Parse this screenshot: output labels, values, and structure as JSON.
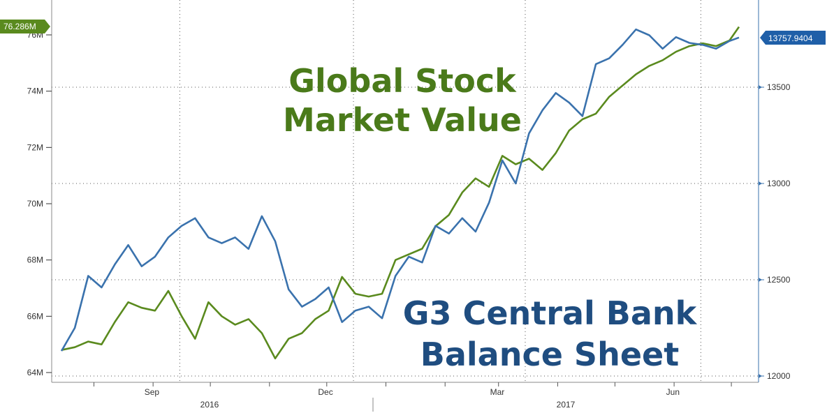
{
  "chart_data": {
    "type": "line",
    "x_axis": {
      "tick_labels": [
        "Sep",
        "Dec",
        "Mar",
        "Jun"
      ],
      "year_labels": [
        "2016",
        "2017"
      ],
      "range": [
        "2016-07-15",
        "2017-07-05"
      ]
    },
    "left_axis": {
      "tick_labels": [
        "64M",
        "66M",
        "68M",
        "70M",
        "72M",
        "74M",
        "76M"
      ],
      "ticks": [
        64,
        66,
        68,
        70,
        72,
        74,
        76
      ],
      "range": [
        63.3,
        77.2
      ]
    },
    "right_axis": {
      "tick_labels": [
        "12000",
        "12500",
        "13000",
        "13500"
      ],
      "ticks": [
        12000,
        12500,
        13000,
        13500
      ],
      "range": [
        12000,
        13900
      ]
    },
    "grid": true,
    "series": [
      {
        "name": "Global Stock Market Value",
        "axis": "left",
        "color": "#5a8a1e",
        "last_value_label": "76.286M",
        "points": [
          [
            "2016-07-15",
            64.8
          ],
          [
            "2016-07-22",
            64.9
          ],
          [
            "2016-07-29",
            65.1
          ],
          [
            "2016-08-05",
            65.0
          ],
          [
            "2016-08-12",
            65.8
          ],
          [
            "2016-08-19",
            66.5
          ],
          [
            "2016-08-26",
            66.3
          ],
          [
            "2016-09-02",
            66.2
          ],
          [
            "2016-09-09",
            66.9
          ],
          [
            "2016-09-16",
            66.0
          ],
          [
            "2016-09-23",
            65.2
          ],
          [
            "2016-09-30",
            66.5
          ],
          [
            "2016-10-07",
            66.0
          ],
          [
            "2016-10-14",
            65.7
          ],
          [
            "2016-10-21",
            65.9
          ],
          [
            "2016-10-28",
            65.4
          ],
          [
            "2016-11-04",
            64.5
          ],
          [
            "2016-11-11",
            65.2
          ],
          [
            "2016-11-18",
            65.4
          ],
          [
            "2016-11-25",
            65.9
          ],
          [
            "2016-12-02",
            66.2
          ],
          [
            "2016-12-09",
            67.4
          ],
          [
            "2016-12-16",
            66.8
          ],
          [
            "2016-12-23",
            66.7
          ],
          [
            "2016-12-30",
            66.8
          ],
          [
            "2017-01-06",
            68.0
          ],
          [
            "2017-01-13",
            68.2
          ],
          [
            "2017-01-20",
            68.4
          ],
          [
            "2017-01-27",
            69.2
          ],
          [
            "2017-02-03",
            69.6
          ],
          [
            "2017-02-10",
            70.4
          ],
          [
            "2017-02-17",
            70.9
          ],
          [
            "2017-02-24",
            70.6
          ],
          [
            "2017-03-03",
            71.7
          ],
          [
            "2017-03-10",
            71.4
          ],
          [
            "2017-03-17",
            71.6
          ],
          [
            "2017-03-24",
            71.2
          ],
          [
            "2017-03-31",
            71.8
          ],
          [
            "2017-04-07",
            72.6
          ],
          [
            "2017-04-14",
            73.0
          ],
          [
            "2017-04-21",
            73.2
          ],
          [
            "2017-04-28",
            73.8
          ],
          [
            "2017-05-05",
            74.2
          ],
          [
            "2017-05-12",
            74.6
          ],
          [
            "2017-05-19",
            74.9
          ],
          [
            "2017-05-26",
            75.1
          ],
          [
            "2017-06-02",
            75.4
          ],
          [
            "2017-06-09",
            75.6
          ],
          [
            "2017-06-16",
            75.7
          ],
          [
            "2017-06-23",
            75.6
          ],
          [
            "2017-06-30",
            75.8
          ],
          [
            "2017-07-05",
            76.286
          ]
        ]
      },
      {
        "name": "G3 Central Bank Balance Sheet",
        "axis": "right",
        "color": "#3a72ad",
        "last_value_label": "13757.9404",
        "points": [
          [
            "2016-07-15",
            12130
          ],
          [
            "2016-07-22",
            12250
          ],
          [
            "2016-07-29",
            12520
          ],
          [
            "2016-08-05",
            12460
          ],
          [
            "2016-08-12",
            12580
          ],
          [
            "2016-08-19",
            12680
          ],
          [
            "2016-08-26",
            12570
          ],
          [
            "2016-09-02",
            12620
          ],
          [
            "2016-09-09",
            12720
          ],
          [
            "2016-09-16",
            12780
          ],
          [
            "2016-09-23",
            12820
          ],
          [
            "2016-09-30",
            12720
          ],
          [
            "2016-10-07",
            12690
          ],
          [
            "2016-10-14",
            12720
          ],
          [
            "2016-10-21",
            12660
          ],
          [
            "2016-10-28",
            12830
          ],
          [
            "2016-11-04",
            12700
          ],
          [
            "2016-11-11",
            12450
          ],
          [
            "2016-11-18",
            12360
          ],
          [
            "2016-11-25",
            12400
          ],
          [
            "2016-12-02",
            12460
          ],
          [
            "2016-12-09",
            12280
          ],
          [
            "2016-12-16",
            12340
          ],
          [
            "2016-12-23",
            12360
          ],
          [
            "2016-12-30",
            12300
          ],
          [
            "2017-01-06",
            12520
          ],
          [
            "2017-01-13",
            12620
          ],
          [
            "2017-01-20",
            12590
          ],
          [
            "2017-01-27",
            12780
          ],
          [
            "2017-02-03",
            12740
          ],
          [
            "2017-02-10",
            12820
          ],
          [
            "2017-02-17",
            12750
          ],
          [
            "2017-02-24",
            12900
          ],
          [
            "2017-03-03",
            13120
          ],
          [
            "2017-03-10",
            13000
          ],
          [
            "2017-03-17",
            13260
          ],
          [
            "2017-03-24",
            13380
          ],
          [
            "2017-03-31",
            13470
          ],
          [
            "2017-04-07",
            13420
          ],
          [
            "2017-04-14",
            13350
          ],
          [
            "2017-04-21",
            13620
          ],
          [
            "2017-04-28",
            13650
          ],
          [
            "2017-05-05",
            13720
          ],
          [
            "2017-05-12",
            13800
          ],
          [
            "2017-05-19",
            13770
          ],
          [
            "2017-05-26",
            13700
          ],
          [
            "2017-06-02",
            13760
          ],
          [
            "2017-06-09",
            13730
          ],
          [
            "2017-06-16",
            13720
          ],
          [
            "2017-06-23",
            13700
          ],
          [
            "2017-06-30",
            13740
          ],
          [
            "2017-07-05",
            13757.9404
          ]
        ]
      }
    ],
    "annotations": {
      "stock_label_line1": "Global Stock",
      "stock_label_line2": "Market Value",
      "cb_label_line1": "G3 Central Bank",
      "cb_label_line2": "Balance Sheet"
    }
  }
}
